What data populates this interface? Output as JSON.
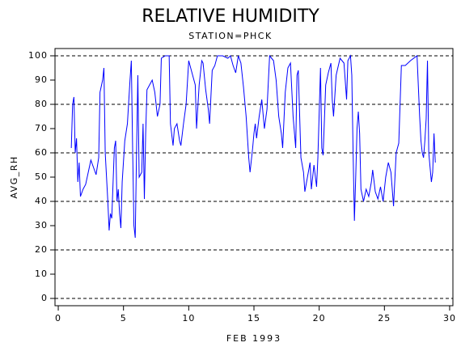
{
  "chart_data": {
    "type": "line",
    "title": "RELATIVE HUMIDITY",
    "subtitle": "STATION=PHCK",
    "ylabel": "AVG_RH",
    "xlabel": "FEB 1993",
    "x": [
      1.0,
      1.1,
      1.2,
      1.3,
      1.4,
      1.5,
      1.6,
      1.7,
      1.9,
      2.1,
      2.3,
      2.5,
      2.7,
      2.9,
      3.1,
      3.2,
      3.4,
      3.5,
      3.6,
      3.8,
      3.9,
      4.0,
      4.1,
      4.3,
      4.4,
      4.5,
      4.6,
      4.7,
      4.8,
      4.9,
      5.1,
      5.3,
      5.5,
      5.6,
      5.7,
      5.8,
      5.9,
      6.0,
      6.1,
      6.2,
      6.4,
      6.5,
      6.6,
      6.7,
      6.8,
      7.0,
      7.2,
      7.4,
      7.6,
      7.8,
      7.9,
      8.2,
      8.5,
      8.6,
      8.8,
      8.9,
      9.1,
      9.3,
      9.4,
      9.6,
      9.8,
      10.0,
      10.3,
      10.5,
      10.6,
      10.8,
      11.0,
      11.1,
      11.3,
      11.5,
      11.6,
      11.8,
      12.0,
      12.2,
      12.6,
      13.0,
      13.2,
      13.4,
      13.6,
      13.8,
      14.0,
      14.2,
      14.4,
      14.6,
      14.7,
      14.9,
      15.0,
      15.1,
      15.2,
      15.4,
      15.6,
      15.8,
      16.0,
      16.2,
      16.5,
      16.7,
      16.9,
      17.1,
      17.2,
      17.4,
      17.6,
      17.8,
      18.0,
      18.2,
      18.3,
      18.4,
      18.6,
      18.8,
      18.9,
      19.1,
      19.3,
      19.4,
      19.6,
      19.8,
      19.9,
      20.1,
      20.2,
      20.3,
      20.5,
      20.7,
      20.9,
      21.0,
      21.1,
      21.3,
      21.6,
      21.9,
      22.1,
      22.2,
      22.4,
      22.5,
      22.6,
      22.7,
      22.8,
      22.9,
      23.0,
      23.1,
      23.2,
      23.4,
      23.6,
      23.8,
      24.0,
      24.1,
      24.3,
      24.5,
      24.7,
      24.9,
      25.1,
      25.3,
      25.5,
      25.7,
      25.9,
      26.1,
      26.3,
      26.6,
      27.0,
      27.5,
      27.7,
      27.8,
      27.9,
      28.0,
      28.1,
      28.2,
      28.3,
      28.4,
      28.6,
      28.7,
      28.8,
      28.9
    ],
    "series": [
      {
        "color": "#0000ff",
        "values": [
          62,
          80,
          83,
          60,
          66,
          48,
          56,
          42,
          45,
          47,
          52,
          57,
          54,
          51,
          58,
          85,
          90,
          95,
          60,
          40,
          28,
          35,
          33,
          62,
          65,
          40,
          45,
          35,
          29,
          48,
          65,
          72,
          90,
          98,
          62,
          30,
          25,
          60,
          92,
          50,
          52,
          72,
          41,
          68,
          86,
          88,
          90,
          85,
          75,
          80,
          99,
          100,
          100,
          72,
          63,
          70,
          72,
          65,
          63,
          72,
          80,
          98,
          92,
          88,
          70,
          88,
          98,
          97,
          86,
          78,
          72,
          94,
          96,
          100,
          100,
          99,
          100,
          96,
          93,
          100,
          97,
          87,
          75,
          58,
          52,
          62,
          68,
          72,
          66,
          75,
          82,
          70,
          78,
          100,
          98,
          90,
          75,
          68,
          62,
          85,
          95,
          97,
          75,
          62,
          92,
          94,
          58,
          52,
          44,
          50,
          56,
          45,
          55,
          46,
          58,
          95,
          62,
          59,
          88,
          93,
          97,
          82,
          75,
          92,
          99,
          97,
          82,
          98,
          100,
          92,
          60,
          32,
          50,
          70,
          77,
          68,
          45,
          40,
          45,
          42,
          48,
          53,
          44,
          41,
          46,
          40,
          50,
          56,
          52,
          38,
          60,
          64,
          96,
          96,
          98,
          100,
          75,
          65,
          60,
          58,
          65,
          74,
          98,
          60,
          48,
          52,
          68,
          56
        ]
      }
    ],
    "xlim": [
      -0.25,
      30.25
    ],
    "ylim": [
      -3,
      103
    ],
    "xticks": [
      0,
      5,
      10,
      15,
      20,
      25,
      30
    ],
    "yticks": [
      0,
      10,
      20,
      30,
      40,
      50,
      60,
      70,
      80,
      90,
      100
    ],
    "grid_lines": [
      0,
      20,
      40,
      60,
      80,
      100
    ]
  }
}
